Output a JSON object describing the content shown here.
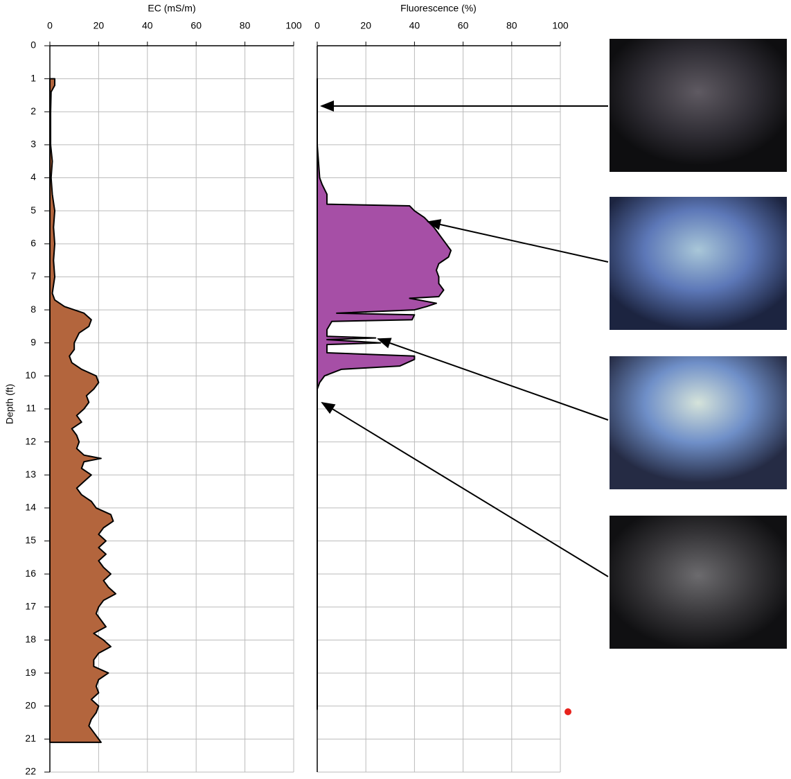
{
  "chart_data": [
    {
      "type": "area",
      "title": "EC (mS/m)",
      "y_label": "Depth (ft)",
      "color": "#b3653d",
      "xlim": [
        0,
        100
      ],
      "xticks": [
        0,
        20,
        40,
        60,
        80,
        100
      ],
      "ylim": [
        0,
        22
      ],
      "yticks": [
        0,
        1,
        2,
        3,
        4,
        5,
        6,
        7,
        8,
        9,
        10,
        11,
        12,
        13,
        14,
        15,
        16,
        17,
        18,
        19,
        20,
        21,
        22
      ],
      "grid": true,
      "y": [
        1.0,
        1.2,
        1.4,
        2,
        3,
        3.5,
        4,
        4.5,
        5,
        5.5,
        6,
        6.5,
        7,
        7.5,
        7.7,
        7.9,
        8.0,
        8.1,
        8.3,
        8.5,
        8.7,
        9.0,
        9.2,
        9.4,
        9.6,
        9.8,
        10.0,
        10.2,
        10.4,
        10.6,
        10.8,
        11.0,
        11.2,
        11.4,
        11.6,
        11.8,
        12.0,
        12.2,
        12.4,
        12.5,
        12.6,
        12.8,
        13.0,
        13.2,
        13.4,
        13.6,
        13.8,
        14.0,
        14.2,
        14.4,
        14.6,
        14.8,
        15.0,
        15.2,
        15.4,
        15.6,
        15.8,
        16.0,
        16.2,
        16.4,
        16.6,
        16.8,
        17.0,
        17.2,
        17.4,
        17.6,
        17.8,
        18.0,
        18.2,
        18.4,
        18.6,
        18.8,
        19.0,
        19.2,
        19.4,
        19.6,
        19.8,
        20.0,
        20.2,
        20.4,
        20.6,
        20.8,
        21.0,
        21.1
      ],
      "values": [
        2,
        2,
        0.5,
        0.3,
        0.3,
        1,
        0.5,
        1,
        2,
        1.5,
        2,
        1.5,
        2,
        1,
        2,
        6,
        10,
        14,
        17,
        16,
        12,
        10,
        10,
        8,
        9,
        13,
        19,
        20,
        18,
        15,
        16,
        14,
        11,
        13,
        9,
        11,
        12,
        11,
        14,
        21,
        14,
        13,
        17,
        14,
        11,
        13,
        17,
        19,
        25,
        26,
        22,
        20,
        23,
        20,
        23,
        20,
        22,
        25,
        22,
        24,
        27,
        22,
        20,
        19,
        21,
        23,
        18,
        22,
        25,
        20,
        18,
        18,
        24,
        20,
        19,
        20,
        17,
        20,
        19,
        17,
        16,
        18,
        20,
        21
      ]
    },
    {
      "type": "area",
      "title": "Fluorescence (%)",
      "color": "#a64fa6",
      "xlim": [
        0,
        100
      ],
      "xticks": [
        0,
        20,
        40,
        60,
        80,
        100
      ],
      "y": [
        1.0,
        3.0,
        3.5,
        4.0,
        4.2,
        4.5,
        4.8,
        4.85,
        5.0,
        5.2,
        5.5,
        5.7,
        6.0,
        6.2,
        6.4,
        6.6,
        6.8,
        7.0,
        7.2,
        7.4,
        7.6,
        7.65,
        7.8,
        7.9,
        8.0,
        8.1,
        8.15,
        8.3,
        8.35,
        8.6,
        8.8,
        8.85,
        8.9,
        9.0,
        9.05,
        9.3,
        9.4,
        9.5,
        9.7,
        9.8,
        10.0,
        10.2,
        10.4,
        11.0,
        20.1
      ],
      "values": [
        0,
        0,
        0.5,
        1,
        2,
        4,
        4,
        38,
        40,
        44,
        48,
        50,
        53,
        55,
        54,
        50,
        49,
        50,
        50,
        52,
        50,
        38,
        49,
        45,
        40,
        8,
        40,
        39,
        6,
        4,
        4,
        24,
        4,
        26,
        4,
        4,
        40,
        40,
        34,
        10,
        3,
        1,
        0,
        0,
        0
      ]
    }
  ]
}
